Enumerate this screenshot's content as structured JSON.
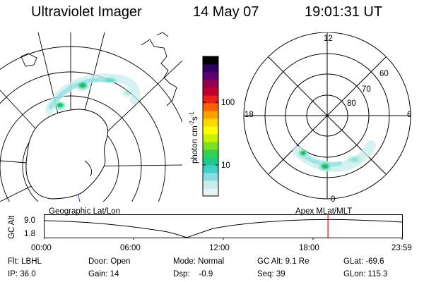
{
  "header": {
    "instrument": "Ultraviolet Imager",
    "date": "14 May 07",
    "time": "19:01:31 UT"
  },
  "colorbar": {
    "unit_label": "photon cm-2s-1",
    "unit_main": "photon cm",
    "unit_exp1": "-2",
    "unit_mid": "s",
    "unit_exp2": "-1",
    "ticks": [
      {
        "label": "100",
        "value": 100
      },
      {
        "label": "10",
        "value": 10
      }
    ],
    "colors": [
      "#e8f4f4",
      "#c8ecec",
      "#88dede",
      "#40d0c8",
      "#20c890",
      "#30d050",
      "#80e020",
      "#c8f000",
      "#ffff00",
      "#ffd800",
      "#ffa000",
      "#ff6000",
      "#e82020",
      "#c00030",
      "#900050",
      "#600070",
      "#300060",
      "#000000"
    ]
  },
  "left_panel": {
    "name": "geographic map",
    "label": "Geographic Lat/Lon"
  },
  "right_panel": {
    "name": "mlat mlt polar plot",
    "label": "Apex MLat/MLT",
    "mlt_labels": {
      "top": "12",
      "bottom": "0",
      "left": "18",
      "right": "6"
    },
    "lat_labels": [
      "60",
      "70",
      "80"
    ]
  },
  "timeline": {
    "ylabel": "GC Alt",
    "y_ticks": [
      "9.0",
      "1.8"
    ],
    "x_ticks": [
      "00:00",
      "06:00",
      "12:00",
      "18:00",
      "23:59"
    ],
    "current_time_hours": 19.025,
    "marker_color": "#ff0000"
  },
  "info": {
    "flt": "Flt: LBHL",
    "ip": "IP: 36.0",
    "door": "Door: Open",
    "gain": "Gain: 14",
    "mode": "Mode: Normal",
    "dsp": "Dsp:    -0.9",
    "gcalt": "GC Alt: 9.1 Re",
    "seq": "Seq: 39",
    "glat": "GLat: -69.6",
    "glon": "GLon: 115.3"
  }
}
